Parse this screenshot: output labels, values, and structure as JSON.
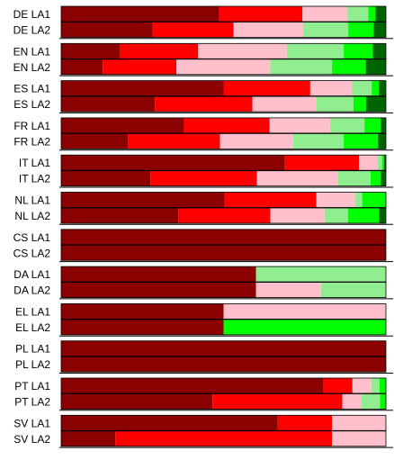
{
  "chart_data": {
    "type": "bar",
    "orientation": "horizontal",
    "stacked": true,
    "normalized": true,
    "xlim": [
      0,
      1
    ],
    "grid": false,
    "legend": "none",
    "segment_colors": [
      "#8b0000",
      "#ff0000",
      "#ffc0cb",
      "#90ee90",
      "#00ff00",
      "#006400"
    ],
    "groups": [
      {
        "rows": [
          {
            "label": "DE LA1",
            "values": [
              0.487,
              0.256,
              0.139,
              0.064,
              0.022,
              0.032
            ]
          },
          {
            "label": "DE LA2",
            "values": [
              0.281,
              0.25,
              0.214,
              0.139,
              0.078,
              0.038
            ]
          }
        ]
      },
      {
        "rows": [
          {
            "label": "EN LA1",
            "values": [
              0.18,
              0.242,
              0.273,
              0.175,
              0.09,
              0.04
            ]
          },
          {
            "label": "EN LA2",
            "values": [
              0.128,
              0.227,
              0.289,
              0.19,
              0.104,
              0.062
            ]
          }
        ]
      },
      {
        "rows": [
          {
            "label": "ES LA1",
            "values": [
              0.5,
              0.267,
              0.128,
              0.061,
              0.022,
              0.022
            ]
          },
          {
            "label": "ES LA2",
            "values": [
              0.289,
              0.3,
              0.197,
              0.114,
              0.039,
              0.061
            ]
          }
        ]
      },
      {
        "rows": [
          {
            "label": "FR LA1",
            "values": [
              0.378,
              0.264,
              0.186,
              0.106,
              0.05,
              0.016
            ]
          },
          {
            "label": "FR LA2",
            "values": [
              0.206,
              0.283,
              0.225,
              0.156,
              0.106,
              0.024
            ]
          }
        ]
      },
      {
        "rows": [
          {
            "label": "IT LA1",
            "values": [
              0.689,
              0.228,
              0.058,
              0.013,
              0.006,
              0.006
            ]
          },
          {
            "label": "IT LA2",
            "values": [
              0.275,
              0.328,
              0.25,
              0.1,
              0.031,
              0.016
            ]
          }
        ]
      },
      {
        "rows": [
          {
            "label": "NL LA1",
            "values": [
              0.503,
              0.283,
              0.119,
              0.022,
              0.073,
              0
            ]
          },
          {
            "label": "NL LA2",
            "values": [
              0.361,
              0.283,
              0.167,
              0.072,
              0.096,
              0.021
            ]
          }
        ]
      },
      {
        "rows": [
          {
            "label": "CS LA1",
            "values": [
              1,
              0,
              0,
              0,
              0,
              0
            ]
          },
          {
            "label": "CS LA2",
            "values": [
              1,
              0,
              0,
              0,
              0,
              0
            ]
          }
        ]
      },
      {
        "rows": [
          {
            "label": "DA LA1",
            "values": [
              0.6,
              0,
              0,
              0.4,
              0,
              0
            ]
          },
          {
            "label": "DA LA2",
            "values": [
              0.6,
              0,
              0.2,
              0.2,
              0,
              0
            ]
          }
        ]
      },
      {
        "rows": [
          {
            "label": "EL LA1",
            "values": [
              0.5,
              0,
              0.5,
              0,
              0,
              0
            ]
          },
          {
            "label": "EL LA2",
            "values": [
              0.5,
              0,
              0,
              0,
              0.5,
              0
            ]
          }
        ]
      },
      {
        "rows": [
          {
            "label": "PL LA1",
            "values": [
              1,
              0,
              0,
              0,
              0,
              0
            ]
          },
          {
            "label": "PL LA2",
            "values": [
              1,
              0,
              0,
              0,
              0,
              0
            ]
          }
        ]
      },
      {
        "rows": [
          {
            "label": "PT LA1",
            "values": [
              0.808,
              0.089,
              0.058,
              0.025,
              0.02,
              0
            ]
          },
          {
            "label": "PT LA2",
            "values": [
              0.466,
              0.4,
              0.058,
              0.058,
              0.018,
              0
            ]
          }
        ]
      },
      {
        "rows": [
          {
            "label": "SV LA1",
            "values": [
              0.667,
              0.167,
              0.166,
              0,
              0,
              0
            ]
          },
          {
            "label": "SV LA2",
            "values": [
              0.167,
              0.667,
              0.166,
              0,
              0,
              0
            ]
          }
        ]
      }
    ]
  }
}
